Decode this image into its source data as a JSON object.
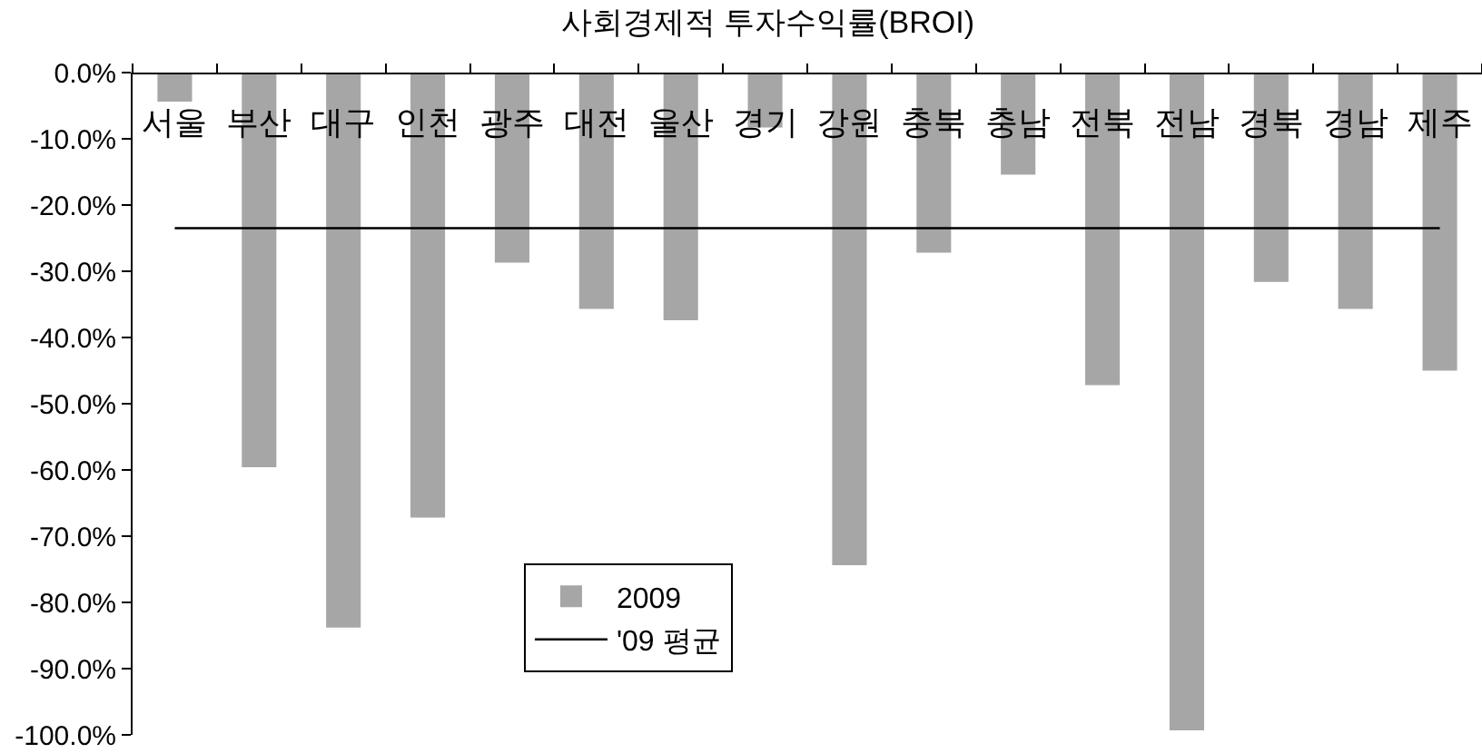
{
  "chart_data": {
    "type": "bar",
    "title": "사회경제적 투자수익률(BROI)",
    "categories": [
      "서울",
      "부산",
      "대구",
      "인천",
      "광주",
      "대전",
      "울산",
      "경기",
      "강원",
      "충북",
      "충남",
      "전북",
      "전남",
      "경북",
      "경남",
      "제주"
    ],
    "series": [
      {
        "name": "2009",
        "color": "#a6a6a6",
        "values": [
          -4.4,
          -59.6,
          -83.8,
          -67.2,
          -28.7,
          -35.7,
          -37.4,
          -8.3,
          -74.4,
          -27.2,
          -15.4,
          -47.2,
          -99.3,
          -31.6,
          -35.7,
          -45.0
        ]
      }
    ],
    "ref_lines": [
      {
        "axis": "y",
        "value": -23.5,
        "label": "'09 평균",
        "color": "#000000"
      }
    ],
    "ylim": [
      -100,
      0
    ],
    "yticks": [
      {
        "value": 0,
        "label": "0.0%"
      },
      {
        "value": -10,
        "label": "-10.0%"
      },
      {
        "value": -20,
        "label": "-20.0%"
      },
      {
        "value": -30,
        "label": "-30.0%"
      },
      {
        "value": -40,
        "label": "-40.0%"
      },
      {
        "value": -50,
        "label": "-50.0%"
      },
      {
        "value": -60,
        "label": "-60.0%"
      },
      {
        "value": -70,
        "label": "-70.0%"
      },
      {
        "value": -80,
        "label": "-80.0%"
      },
      {
        "value": -90,
        "label": "-90.0%"
      },
      {
        "value": -100,
        "label": "-100.0%"
      }
    ],
    "legend": "bottom left"
  }
}
